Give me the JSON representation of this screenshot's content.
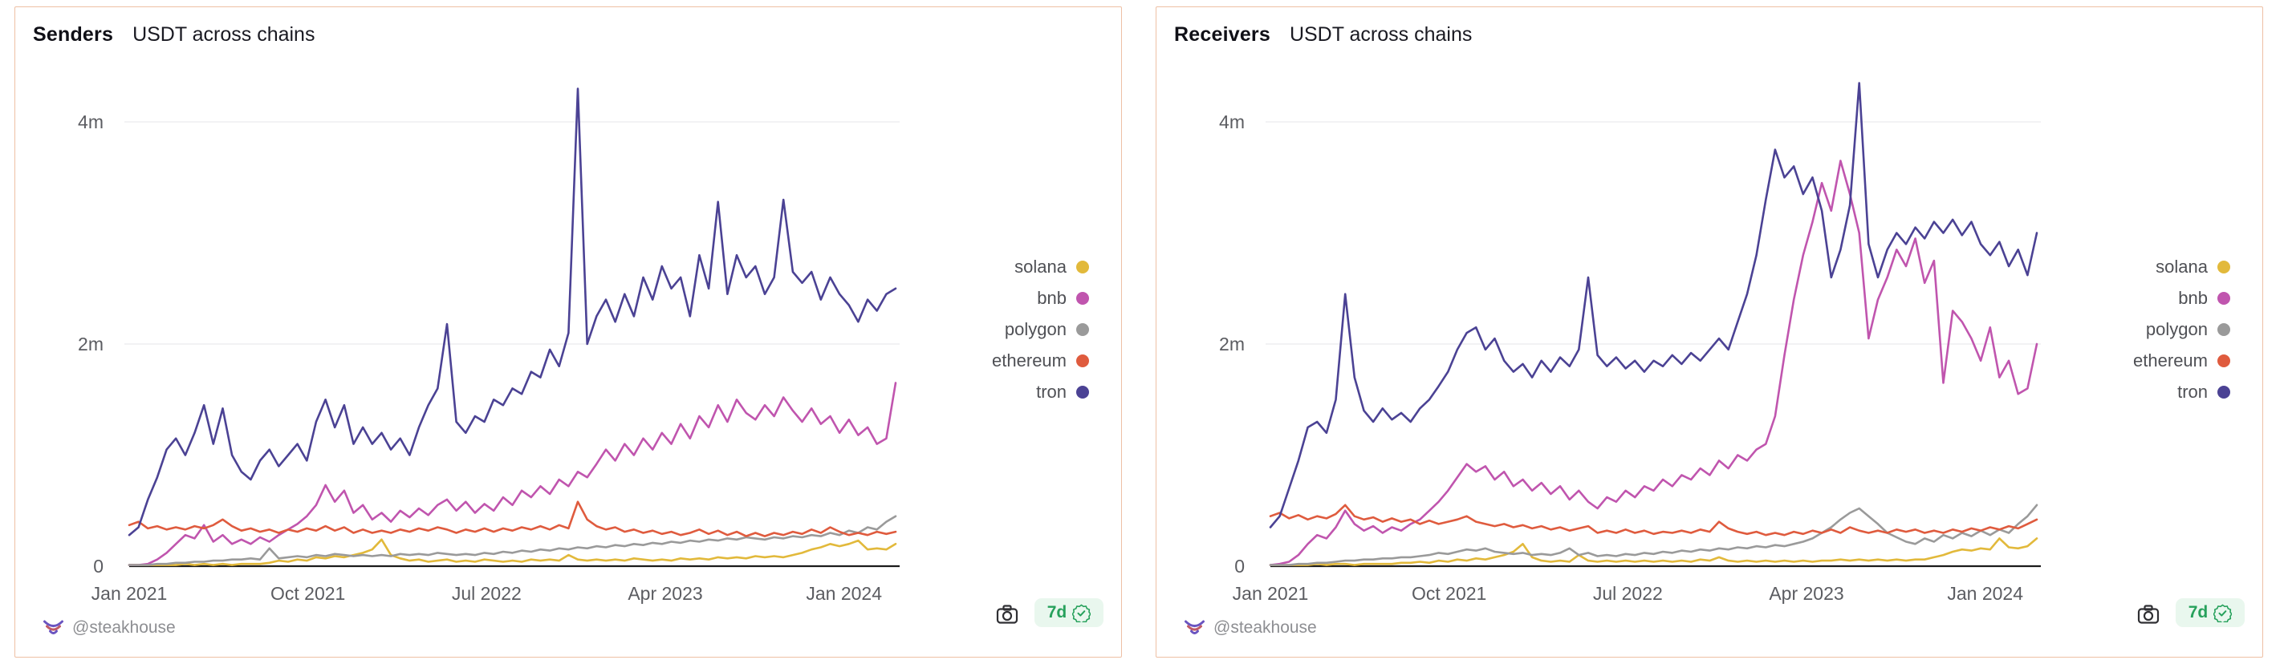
{
  "ui": {
    "background": "#ffffff",
    "panel_border_color": "#eec0a4",
    "axis_color": "#1b1b1b",
    "grid_color": "#ededf1",
    "tick_text_color": "#5b5c61",
    "legend_text_color": "#4f5055",
    "title_color": "#101017",
    "watermark_color": "#8d8e92",
    "footer": {
      "watermark": "@steakhouse",
      "logo_icon": "steakhouse-bull-logo",
      "camera_icon": "camera",
      "badge": {
        "label": "7d",
        "text_color": "#27a15c",
        "bg_color": "#e9f7ee",
        "seal_icon": "verified-seal"
      }
    }
  },
  "chart_data": [
    {
      "type": "line",
      "title": "Senders",
      "subtitle": "USDT across chains",
      "ylim": [
        0,
        4.6
      ],
      "grid": true,
      "legend_position": "right",
      "y_ticks": [
        {
          "value": 0,
          "label": "0"
        },
        {
          "value": 2,
          "label": "2m"
        },
        {
          "value": 4,
          "label": "4m"
        }
      ],
      "x_ticks": [
        {
          "month": 0,
          "label": "Jan 2021"
        },
        {
          "month": 9,
          "label": "Oct 2021"
        },
        {
          "month": 18,
          "label": "Jul 2022"
        },
        {
          "month": 27,
          "label": "Apr 2023"
        },
        {
          "month": 36,
          "label": "Jan 2024"
        }
      ],
      "x_range_months": 38.6,
      "series": [
        {
          "name": "solana",
          "color": "#e2b93b",
          "values": [
            0.01,
            0.01,
            0.01,
            0.01,
            0.01,
            0.01,
            0.02,
            0.01,
            0.02,
            0.01,
            0.02,
            0.01,
            0.02,
            0.02,
            0.02,
            0.03,
            0.05,
            0.04,
            0.06,
            0.05,
            0.08,
            0.07,
            0.09,
            0.08,
            0.1,
            0.12,
            0.15,
            0.24,
            0.1,
            0.07,
            0.05,
            0.06,
            0.04,
            0.05,
            0.06,
            0.04,
            0.05,
            0.04,
            0.06,
            0.05,
            0.04,
            0.05,
            0.04,
            0.06,
            0.05,
            0.06,
            0.05,
            0.1,
            0.06,
            0.05,
            0.06,
            0.05,
            0.06,
            0.05,
            0.07,
            0.06,
            0.05,
            0.06,
            0.05,
            0.07,
            0.06,
            0.07,
            0.06,
            0.08,
            0.07,
            0.08,
            0.07,
            0.09,
            0.08,
            0.09,
            0.08,
            0.1,
            0.12,
            0.15,
            0.17,
            0.2,
            0.18,
            0.2,
            0.23,
            0.15,
            0.16,
            0.15,
            0.2
          ]
        },
        {
          "name": "bnb",
          "color": "#c055ae",
          "values": [
            0.01,
            0.01,
            0.02,
            0.06,
            0.12,
            0.2,
            0.28,
            0.25,
            0.37,
            0.22,
            0.28,
            0.2,
            0.24,
            0.2,
            0.26,
            0.22,
            0.28,
            0.33,
            0.38,
            0.45,
            0.55,
            0.73,
            0.58,
            0.68,
            0.48,
            0.55,
            0.42,
            0.48,
            0.4,
            0.5,
            0.44,
            0.52,
            0.46,
            0.55,
            0.6,
            0.5,
            0.58,
            0.48,
            0.56,
            0.5,
            0.62,
            0.55,
            0.68,
            0.62,
            0.72,
            0.65,
            0.78,
            0.72,
            0.85,
            0.8,
            0.92,
            1.05,
            0.95,
            1.1,
            1.0,
            1.15,
            1.05,
            1.2,
            1.1,
            1.28,
            1.15,
            1.35,
            1.25,
            1.45,
            1.3,
            1.5,
            1.38,
            1.32,
            1.45,
            1.35,
            1.52,
            1.4,
            1.3,
            1.42,
            1.28,
            1.35,
            1.2,
            1.32,
            1.18,
            1.25,
            1.1,
            1.15,
            1.65
          ]
        },
        {
          "name": "polygon",
          "color": "#9a9a9a",
          "values": [
            0.01,
            0.01,
            0.01,
            0.02,
            0.02,
            0.03,
            0.03,
            0.04,
            0.04,
            0.05,
            0.05,
            0.06,
            0.06,
            0.07,
            0.06,
            0.16,
            0.07,
            0.08,
            0.09,
            0.08,
            0.1,
            0.09,
            0.11,
            0.1,
            0.09,
            0.1,
            0.09,
            0.1,
            0.09,
            0.11,
            0.1,
            0.11,
            0.1,
            0.12,
            0.11,
            0.1,
            0.11,
            0.1,
            0.12,
            0.11,
            0.13,
            0.12,
            0.14,
            0.13,
            0.15,
            0.14,
            0.16,
            0.15,
            0.17,
            0.16,
            0.18,
            0.17,
            0.19,
            0.18,
            0.2,
            0.19,
            0.21,
            0.2,
            0.22,
            0.21,
            0.23,
            0.22,
            0.24,
            0.23,
            0.25,
            0.24,
            0.26,
            0.25,
            0.24,
            0.26,
            0.25,
            0.27,
            0.26,
            0.28,
            0.27,
            0.3,
            0.28,
            0.32,
            0.3,
            0.35,
            0.33,
            0.4,
            0.45
          ]
        },
        {
          "name": "ethereum",
          "color": "#df5b3e",
          "values": [
            0.37,
            0.4,
            0.34,
            0.36,
            0.33,
            0.35,
            0.33,
            0.36,
            0.34,
            0.37,
            0.42,
            0.36,
            0.32,
            0.34,
            0.31,
            0.33,
            0.3,
            0.33,
            0.31,
            0.34,
            0.32,
            0.36,
            0.32,
            0.35,
            0.3,
            0.33,
            0.3,
            0.32,
            0.3,
            0.33,
            0.31,
            0.34,
            0.32,
            0.35,
            0.33,
            0.3,
            0.33,
            0.31,
            0.34,
            0.31,
            0.34,
            0.32,
            0.35,
            0.33,
            0.36,
            0.33,
            0.37,
            0.34,
            0.58,
            0.42,
            0.36,
            0.33,
            0.35,
            0.31,
            0.33,
            0.3,
            0.32,
            0.29,
            0.31,
            0.28,
            0.3,
            0.33,
            0.29,
            0.32,
            0.28,
            0.31,
            0.27,
            0.3,
            0.27,
            0.3,
            0.28,
            0.31,
            0.29,
            0.33,
            0.3,
            0.35,
            0.31,
            0.28,
            0.3,
            0.28,
            0.31,
            0.29,
            0.31
          ]
        },
        {
          "name": "tron",
          "color": "#4b4294",
          "values": [
            0.28,
            0.35,
            0.6,
            0.8,
            1.05,
            1.15,
            1.0,
            1.2,
            1.45,
            1.1,
            1.42,
            1.0,
            0.85,
            0.78,
            0.95,
            1.05,
            0.9,
            1.0,
            1.1,
            0.95,
            1.3,
            1.5,
            1.25,
            1.45,
            1.1,
            1.25,
            1.1,
            1.2,
            1.05,
            1.15,
            1.0,
            1.25,
            1.45,
            1.6,
            2.18,
            1.3,
            1.2,
            1.35,
            1.3,
            1.5,
            1.45,
            1.6,
            1.55,
            1.75,
            1.7,
            1.95,
            1.8,
            2.1,
            4.3,
            2.0,
            2.25,
            2.4,
            2.2,
            2.45,
            2.25,
            2.6,
            2.4,
            2.7,
            2.5,
            2.6,
            2.25,
            2.8,
            2.5,
            3.28,
            2.45,
            2.8,
            2.6,
            2.7,
            2.45,
            2.6,
            3.3,
            2.65,
            2.55,
            2.65,
            2.4,
            2.6,
            2.45,
            2.35,
            2.2,
            2.4,
            2.3,
            2.45,
            2.5
          ]
        }
      ]
    },
    {
      "type": "line",
      "title": "Receivers",
      "subtitle": "USDT across chains",
      "ylim": [
        0,
        4.6
      ],
      "grid": true,
      "legend_position": "right",
      "y_ticks": [
        {
          "value": 0,
          "label": "0"
        },
        {
          "value": 2,
          "label": "2m"
        },
        {
          "value": 4,
          "label": "4m"
        }
      ],
      "x_ticks": [
        {
          "month": 0,
          "label": "Jan 2021"
        },
        {
          "month": 9,
          "label": "Oct 2021"
        },
        {
          "month": 18,
          "label": "Jul 2022"
        },
        {
          "month": 27,
          "label": "Apr 2023"
        },
        {
          "month": 36,
          "label": "Jan 2024"
        }
      ],
      "x_range_months": 38.6,
      "series": [
        {
          "name": "solana",
          "color": "#e2b93b",
          "values": [
            0.01,
            0.01,
            0.01,
            0.01,
            0.01,
            0.02,
            0.01,
            0.02,
            0.02,
            0.01,
            0.02,
            0.02,
            0.02,
            0.02,
            0.03,
            0.03,
            0.04,
            0.03,
            0.05,
            0.04,
            0.06,
            0.05,
            0.07,
            0.06,
            0.08,
            0.1,
            0.13,
            0.2,
            0.08,
            0.05,
            0.04,
            0.05,
            0.04,
            0.1,
            0.05,
            0.04,
            0.05,
            0.04,
            0.05,
            0.04,
            0.05,
            0.04,
            0.05,
            0.04,
            0.05,
            0.04,
            0.06,
            0.05,
            0.08,
            0.05,
            0.04,
            0.05,
            0.04,
            0.05,
            0.04,
            0.05,
            0.04,
            0.05,
            0.04,
            0.05,
            0.05,
            0.06,
            0.05,
            0.06,
            0.05,
            0.06,
            0.05,
            0.06,
            0.05,
            0.06,
            0.06,
            0.08,
            0.1,
            0.13,
            0.15,
            0.14,
            0.16,
            0.15,
            0.25,
            0.17,
            0.16,
            0.18,
            0.25
          ]
        },
        {
          "name": "bnb",
          "color": "#c055ae",
          "values": [
            0.01,
            0.02,
            0.04,
            0.1,
            0.2,
            0.28,
            0.25,
            0.35,
            0.5,
            0.38,
            0.32,
            0.36,
            0.3,
            0.35,
            0.32,
            0.38,
            0.42,
            0.5,
            0.58,
            0.68,
            0.8,
            0.92,
            0.85,
            0.9,
            0.78,
            0.85,
            0.72,
            0.78,
            0.68,
            0.75,
            0.65,
            0.72,
            0.6,
            0.68,
            0.58,
            0.52,
            0.62,
            0.58,
            0.68,
            0.62,
            0.72,
            0.68,
            0.78,
            0.72,
            0.82,
            0.78,
            0.88,
            0.82,
            0.95,
            0.88,
            1.0,
            0.95,
            1.05,
            1.1,
            1.35,
            1.9,
            2.4,
            2.8,
            3.1,
            3.45,
            3.2,
            3.65,
            3.35,
            3.0,
            2.05,
            2.4,
            2.6,
            2.85,
            2.7,
            2.95,
            2.55,
            2.75,
            1.65,
            2.3,
            2.2,
            2.05,
            1.85,
            2.15,
            1.7,
            1.85,
            1.55,
            1.6,
            2.0
          ]
        },
        {
          "name": "polygon",
          "color": "#9a9a9a",
          "values": [
            0.01,
            0.01,
            0.01,
            0.02,
            0.02,
            0.03,
            0.03,
            0.04,
            0.05,
            0.05,
            0.06,
            0.06,
            0.07,
            0.07,
            0.08,
            0.08,
            0.09,
            0.1,
            0.12,
            0.11,
            0.13,
            0.15,
            0.14,
            0.16,
            0.13,
            0.12,
            0.11,
            0.12,
            0.1,
            0.11,
            0.1,
            0.12,
            0.16,
            0.1,
            0.12,
            0.09,
            0.1,
            0.09,
            0.11,
            0.1,
            0.12,
            0.11,
            0.13,
            0.12,
            0.14,
            0.13,
            0.15,
            0.14,
            0.16,
            0.15,
            0.17,
            0.16,
            0.18,
            0.17,
            0.19,
            0.18,
            0.2,
            0.22,
            0.25,
            0.3,
            0.35,
            0.42,
            0.48,
            0.52,
            0.45,
            0.38,
            0.3,
            0.26,
            0.22,
            0.2,
            0.25,
            0.22,
            0.28,
            0.25,
            0.3,
            0.27,
            0.32,
            0.28,
            0.33,
            0.3,
            0.38,
            0.45,
            0.55
          ]
        },
        {
          "name": "ethereum",
          "color": "#df5b3e",
          "values": [
            0.45,
            0.48,
            0.43,
            0.46,
            0.42,
            0.45,
            0.43,
            0.47,
            0.55,
            0.45,
            0.42,
            0.44,
            0.4,
            0.43,
            0.4,
            0.42,
            0.38,
            0.41,
            0.38,
            0.4,
            0.42,
            0.45,
            0.4,
            0.38,
            0.36,
            0.38,
            0.35,
            0.37,
            0.34,
            0.36,
            0.33,
            0.35,
            0.32,
            0.34,
            0.36,
            0.3,
            0.32,
            0.3,
            0.33,
            0.3,
            0.32,
            0.29,
            0.31,
            0.3,
            0.32,
            0.3,
            0.33,
            0.31,
            0.4,
            0.34,
            0.31,
            0.29,
            0.31,
            0.28,
            0.3,
            0.28,
            0.31,
            0.29,
            0.32,
            0.3,
            0.33,
            0.3,
            0.35,
            0.32,
            0.3,
            0.32,
            0.3,
            0.33,
            0.31,
            0.33,
            0.3,
            0.32,
            0.3,
            0.33,
            0.31,
            0.34,
            0.32,
            0.35,
            0.33,
            0.36,
            0.34,
            0.38,
            0.42
          ]
        },
        {
          "name": "tron",
          "color": "#4b4294",
          "values": [
            0.35,
            0.45,
            0.7,
            0.95,
            1.25,
            1.3,
            1.2,
            1.5,
            2.45,
            1.7,
            1.4,
            1.3,
            1.42,
            1.32,
            1.38,
            1.3,
            1.42,
            1.5,
            1.62,
            1.75,
            1.95,
            2.1,
            2.15,
            1.95,
            2.05,
            1.85,
            1.75,
            1.82,
            1.7,
            1.85,
            1.75,
            1.88,
            1.8,
            1.95,
            2.6,
            1.9,
            1.8,
            1.88,
            1.78,
            1.85,
            1.75,
            1.85,
            1.8,
            1.9,
            1.82,
            1.92,
            1.85,
            1.95,
            2.05,
            1.95,
            2.2,
            2.45,
            2.8,
            3.3,
            3.75,
            3.5,
            3.6,
            3.35,
            3.5,
            3.2,
            2.6,
            2.85,
            3.25,
            4.35,
            2.9,
            2.6,
            2.85,
            3.0,
            2.9,
            3.05,
            2.95,
            3.1,
            3.0,
            3.12,
            2.98,
            3.1,
            2.9,
            2.8,
            2.92,
            2.7,
            2.85,
            2.62,
            3.0
          ]
        }
      ]
    }
  ]
}
